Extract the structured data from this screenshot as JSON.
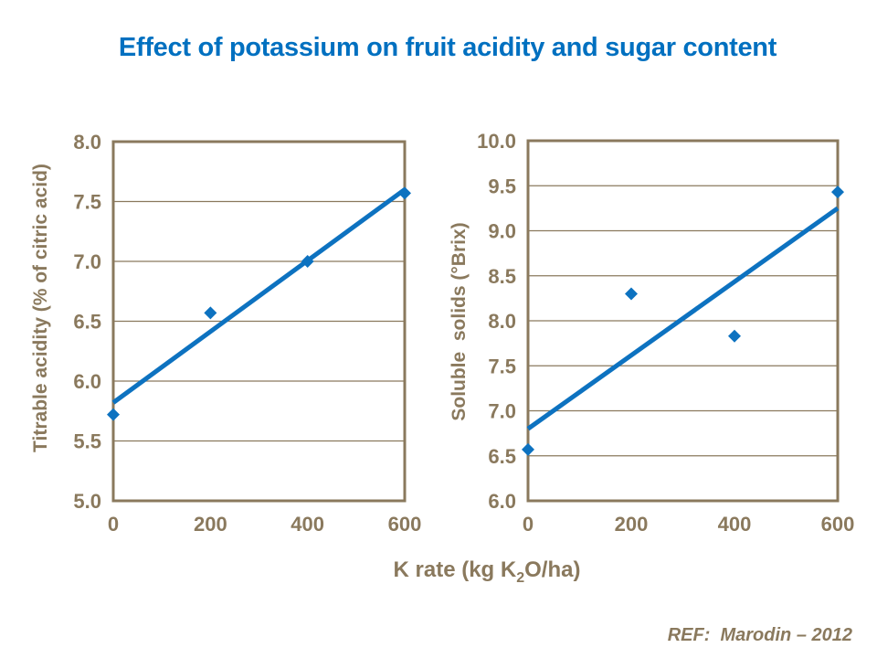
{
  "title": "Effect of potassium on fruit acidity and sugar content",
  "reference": "REF:  Marodin – 2012",
  "colors": {
    "title_blue": "#0070c0",
    "plot_blue": "#0d72c0",
    "axis_brown": "#8a795d",
    "background": "#ffffff"
  },
  "xlabel": {
    "text": "K rate (kg K2O/ha)",
    "pre": "K rate (kg K",
    "sub": "2",
    "post": "O/ha)"
  },
  "chart_data": [
    {
      "type": "scatter",
      "name": "titrable-acidity",
      "title": "",
      "xlabel": "K rate (kg K2O/ha)",
      "ylabel": "Titrable acidity (% of citric acid)",
      "x": [
        0,
        200,
        400,
        600
      ],
      "y": [
        5.72,
        6.57,
        7.0,
        7.57
      ],
      "trendline": {
        "x": [
          0,
          600
        ],
        "y": [
          5.82,
          7.6
        ]
      },
      "xlim": [
        0,
        600
      ],
      "ylim": [
        5.0,
        8.0
      ],
      "xtick_values": [
        0,
        200,
        400,
        600
      ],
      "xtick_labels": [
        "0",
        "200",
        "400",
        "600"
      ],
      "ytick_values": [
        5.0,
        5.5,
        6.0,
        6.5,
        7.0,
        7.5,
        8.0
      ],
      "ytick_labels": [
        "5.0",
        "5.5",
        "6.0",
        "6.5",
        "7.0",
        "7.5",
        "8.0"
      ],
      "grid": "horizontal",
      "legend": "none",
      "marker": "diamond"
    },
    {
      "type": "scatter",
      "name": "soluble-solids",
      "title": "",
      "xlabel": "K rate (kg K2O/ha)",
      "ylabel": "Soluble  solids (°Brix)",
      "x": [
        0,
        200,
        400,
        600
      ],
      "y": [
        6.57,
        8.3,
        7.83,
        9.43
      ],
      "trendline": {
        "x": [
          0,
          600
        ],
        "y": [
          6.8,
          9.25
        ]
      },
      "xlim": [
        0,
        600
      ],
      "ylim": [
        6.0,
        10.0
      ],
      "xtick_values": [
        0,
        200,
        400,
        600
      ],
      "xtick_labels": [
        "0",
        "200",
        "400",
        "600"
      ],
      "ytick_values": [
        6.0,
        6.5,
        7.0,
        7.5,
        8.0,
        8.5,
        9.0,
        9.5,
        10.0
      ],
      "ytick_labels": [
        "6.0",
        "6.5",
        "7.0",
        "7.5",
        "8.0",
        "8.5",
        "9.0",
        "9.5",
        "10.0"
      ],
      "grid": "horizontal",
      "legend": "none",
      "marker": "diamond"
    }
  ]
}
